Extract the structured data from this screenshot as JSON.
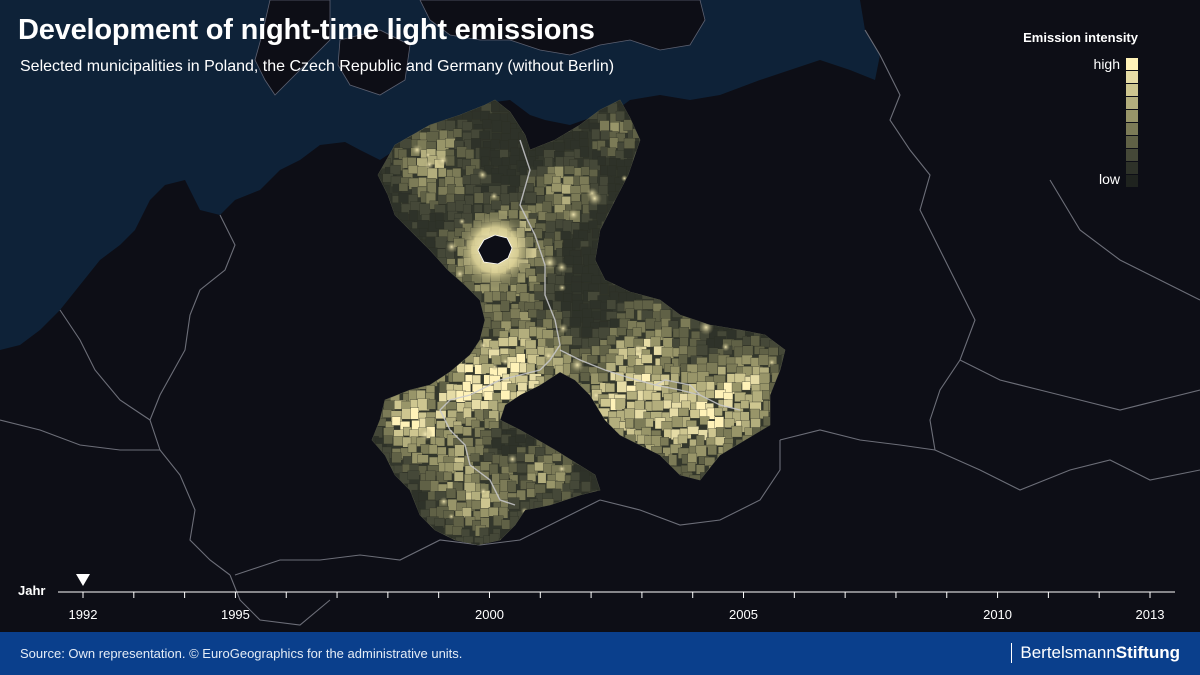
{
  "title": "Development of night-time light emissions",
  "subtitle": "Selected municipalities in Poland, the Czech Republic and Germany (without Berlin)",
  "legend": {
    "title": "Emission intensity",
    "high_label": "high",
    "low_label": "low",
    "colors": [
      "#fff2b8",
      "#e6dca6",
      "#cec690",
      "#b3ae7d",
      "#989569",
      "#7c7b57",
      "#606146",
      "#454838",
      "#2e3229",
      "#1f231f"
    ]
  },
  "timeline": {
    "label": "Jahr",
    "start": 1992,
    "end": 2013,
    "labeled_years": [
      "1992",
      "1995",
      "2000",
      "2005",
      "2010",
      "2013"
    ],
    "current_year": 1992
  },
  "colors": {
    "background": "#0d0e16",
    "sea": "#0e2238",
    "borders": "#6c6e78",
    "footer": "#0a3f8c"
  },
  "footer": {
    "source": "Source: Own representation. © EuroGeographics for the administrative units.",
    "brand_regular": "Bertelsmann",
    "brand_bold": "Stiftung"
  }
}
